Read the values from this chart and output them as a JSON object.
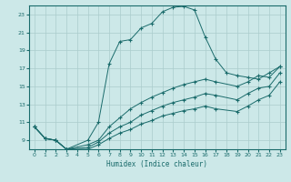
{
  "xlabel": "Humidex (Indice chaleur)",
  "bg_color": "#cce8e8",
  "grid_color": "#aacccc",
  "line_color": "#1a6b6b",
  "xlim": [
    -0.5,
    23.5
  ],
  "ylim": [
    8,
    24
  ],
  "xticks": [
    0,
    1,
    2,
    3,
    4,
    5,
    6,
    7,
    8,
    9,
    10,
    11,
    12,
    13,
    14,
    15,
    16,
    17,
    18,
    19,
    20,
    21,
    22,
    23
  ],
  "yticks": [
    9,
    11,
    13,
    15,
    17,
    19,
    21,
    23
  ],
  "line1_x": [
    0,
    1,
    2,
    3,
    5,
    6,
    7,
    8,
    9,
    10,
    11,
    12,
    13,
    14,
    15,
    16,
    17,
    18,
    19,
    20,
    21,
    22,
    23
  ],
  "line1_y": [
    10.5,
    9.2,
    9.0,
    8.0,
    9.0,
    11.0,
    17.5,
    20.0,
    20.2,
    21.5,
    22.0,
    23.3,
    23.8,
    23.9,
    23.5,
    20.5,
    18.0,
    16.5,
    16.2,
    16.0,
    15.8,
    16.5,
    17.2
  ],
  "line2_x": [
    0,
    1,
    2,
    3,
    5,
    6,
    7,
    8,
    9,
    10,
    11,
    12,
    13,
    14,
    15,
    16,
    17,
    19,
    20,
    21,
    22,
    23
  ],
  "line2_y": [
    10.5,
    9.2,
    9.0,
    8.0,
    8.5,
    9.0,
    10.5,
    11.5,
    12.5,
    13.2,
    13.8,
    14.3,
    14.8,
    15.2,
    15.5,
    15.8,
    15.5,
    15.0,
    15.5,
    16.2,
    16.0,
    17.2
  ],
  "line3_x": [
    0,
    1,
    2,
    3,
    5,
    6,
    7,
    8,
    9,
    10,
    11,
    12,
    13,
    14,
    15,
    16,
    17,
    19,
    20,
    21,
    22,
    23
  ],
  "line3_y": [
    10.5,
    9.2,
    9.0,
    8.0,
    8.2,
    8.8,
    9.8,
    10.5,
    11.0,
    11.8,
    12.3,
    12.8,
    13.2,
    13.5,
    13.8,
    14.2,
    14.0,
    13.5,
    14.2,
    14.8,
    15.0,
    16.5
  ],
  "line4_x": [
    0,
    1,
    2,
    3,
    5,
    6,
    7,
    8,
    9,
    10,
    11,
    12,
    13,
    14,
    15,
    16,
    17,
    19,
    20,
    21,
    22,
    23
  ],
  "line4_y": [
    10.5,
    9.2,
    9.0,
    8.0,
    8.0,
    8.5,
    9.2,
    9.8,
    10.2,
    10.8,
    11.2,
    11.7,
    12.0,
    12.3,
    12.5,
    12.8,
    12.5,
    12.2,
    12.8,
    13.5,
    14.0,
    15.5
  ]
}
